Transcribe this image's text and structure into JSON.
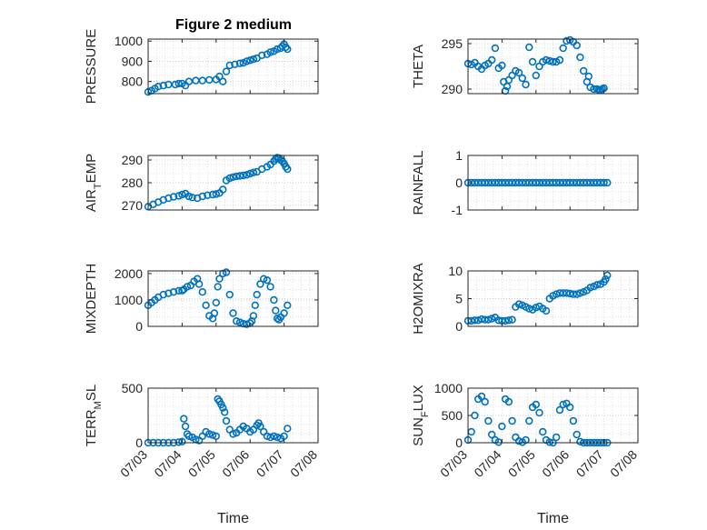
{
  "figure": {
    "title": "Figure 2 medium",
    "colors": {
      "marker": "#0072BD",
      "axis": "#262626",
      "grid": "#d9d9d9",
      "background": "#ffffff"
    }
  },
  "chart_data": [
    {
      "id": "pressure",
      "type": "scatter",
      "marker": "circle-open",
      "title": "Figure 2 medium",
      "ylabel": "PRESSURE",
      "ylim": [
        740,
        1010
      ],
      "yticks": [
        800,
        900,
        1000
      ],
      "yticklabels": [
        "800",
        "900",
        "1000"
      ],
      "xlim": [
        0,
        5
      ],
      "grid": true,
      "x": [
        0.0,
        0.1,
        0.2,
        0.3,
        0.45,
        0.6,
        0.8,
        0.9,
        1.0,
        1.1,
        1.2,
        1.4,
        1.6,
        1.8,
        2.0,
        2.1,
        2.2,
        2.3,
        2.4,
        2.55,
        2.7,
        2.8,
        2.9,
        3.0,
        3.1,
        3.2,
        3.35,
        3.5,
        3.6,
        3.7,
        3.8,
        3.9,
        3.95,
        4.0,
        4.05,
        4.1
      ],
      "y": [
        748,
        755,
        765,
        775,
        780,
        785,
        785,
        790,
        790,
        780,
        800,
        805,
        805,
        808,
        810,
        825,
        800,
        850,
        880,
        885,
        890,
        892,
        900,
        905,
        910,
        915,
        930,
        935,
        945,
        950,
        960,
        965,
        975,
        985,
        970,
        960
      ]
    },
    {
      "id": "theta",
      "type": "scatter",
      "marker": "circle-open",
      "ylabel": "THETA",
      "ylim": [
        289.5,
        295.5
      ],
      "yticks": [
        290,
        295
      ],
      "yticklabels": [
        "290",
        "295"
      ],
      "xlim": [
        0,
        5
      ],
      "grid": true,
      "x": [
        0.0,
        0.1,
        0.2,
        0.3,
        0.4,
        0.5,
        0.6,
        0.7,
        0.8,
        0.9,
        1.0,
        1.05,
        1.1,
        1.15,
        1.2,
        1.3,
        1.4,
        1.5,
        1.6,
        1.7,
        1.8,
        1.9,
        2.0,
        2.1,
        2.2,
        2.3,
        2.4,
        2.5,
        2.6,
        2.7,
        2.8,
        2.9,
        3.0,
        3.1,
        3.2,
        3.3,
        3.4,
        3.5,
        3.55,
        3.6,
        3.7,
        3.8,
        3.85,
        3.9,
        3.95,
        4.0
      ],
      "y": [
        292.8,
        292.7,
        292.9,
        292.5,
        292.2,
        292.6,
        292.8,
        293.2,
        294.5,
        292.3,
        292.6,
        290.8,
        289.8,
        290.3,
        291.0,
        291.5,
        292.0,
        291.8,
        291.2,
        290.5,
        294.6,
        293.0,
        291.5,
        292.5,
        293.0,
        293.2,
        293.1,
        293.0,
        293.0,
        293.2,
        294.5,
        295.3,
        295.4,
        295.2,
        294.8,
        293.5,
        292.0,
        290.8,
        291.4,
        290.2,
        290.0,
        290.0,
        289.9,
        289.9,
        290.0,
        290.1
      ]
    },
    {
      "id": "air_temp",
      "type": "scatter",
      "marker": "circle-open",
      "ylabel": "AIR",
      "ylabel_sub": "T",
      "ylabel_rest": "EMP",
      "ylim": [
        268,
        292
      ],
      "yticks": [
        270,
        280,
        290
      ],
      "yticklabels": [
        "270",
        "280",
        "290"
      ],
      "xlim": [
        0,
        5
      ],
      "grid": true,
      "x": [
        0.0,
        0.15,
        0.3,
        0.45,
        0.6,
        0.75,
        0.9,
        1.0,
        1.1,
        1.2,
        1.3,
        1.45,
        1.6,
        1.75,
        1.9,
        2.0,
        2.1,
        2.2,
        2.3,
        2.4,
        2.5,
        2.6,
        2.7,
        2.8,
        2.9,
        3.0,
        3.1,
        3.2,
        3.35,
        3.5,
        3.6,
        3.7,
        3.75,
        3.8,
        3.85,
        3.9,
        3.95,
        4.0,
        4.05,
        4.1
      ],
      "y": [
        269.5,
        270.5,
        271.5,
        272.5,
        273.2,
        273.8,
        274.2,
        274.8,
        275.2,
        274.0,
        273.5,
        273.2,
        274.0,
        274.5,
        274.8,
        275.0,
        275.5,
        277.0,
        281.0,
        282.0,
        282.5,
        282.8,
        283.0,
        283.2,
        283.5,
        284.0,
        284.5,
        284.8,
        286.0,
        287.0,
        288.0,
        289.5,
        290.5,
        291.0,
        290.8,
        290.0,
        289.5,
        288.5,
        287.0,
        286.0
      ]
    },
    {
      "id": "rainfall",
      "type": "scatter",
      "marker": "circle-open",
      "ylabel": "RAINFALL",
      "ylim": [
        -1,
        1
      ],
      "yticks": [
        -1,
        0,
        1
      ],
      "yticklabels": [
        "-1",
        "0",
        "1"
      ],
      "xlim": [
        0,
        5
      ],
      "grid": true,
      "x": [
        0.0,
        0.1,
        0.2,
        0.3,
        0.4,
        0.5,
        0.6,
        0.7,
        0.8,
        0.9,
        1.0,
        1.1,
        1.2,
        1.3,
        1.4,
        1.5,
        1.6,
        1.7,
        1.8,
        1.9,
        2.0,
        2.1,
        2.2,
        2.3,
        2.4,
        2.5,
        2.6,
        2.7,
        2.8,
        2.9,
        3.0,
        3.1,
        3.2,
        3.3,
        3.4,
        3.5,
        3.6,
        3.7,
        3.8,
        3.9,
        4.0,
        4.1
      ],
      "y": [
        0,
        0,
        0,
        0,
        0,
        0,
        0,
        0,
        0,
        0,
        0,
        0,
        0,
        0,
        0,
        0,
        0,
        0,
        0,
        0,
        0,
        0,
        0,
        0,
        0,
        0,
        0,
        0,
        0,
        0,
        0,
        0,
        0,
        0,
        0,
        0,
        0,
        0,
        0,
        0,
        0,
        0
      ]
    },
    {
      "id": "mixdepth",
      "type": "scatter",
      "marker": "circle-open",
      "ylabel": "MIXDEPTH",
      "ylim": [
        0,
        2100
      ],
      "yticks": [
        0,
        1000,
        2000
      ],
      "yticklabels": [
        "0",
        "1000",
        "2000"
      ],
      "xlim": [
        0,
        5
      ],
      "grid": true,
      "x": [
        0.0,
        0.1,
        0.2,
        0.3,
        0.45,
        0.6,
        0.75,
        0.9,
        1.0,
        1.05,
        1.15,
        1.25,
        1.35,
        1.45,
        1.5,
        1.6,
        1.7,
        1.8,
        1.9,
        1.95,
        2.0,
        2.05,
        2.1,
        2.2,
        2.3,
        2.4,
        2.5,
        2.6,
        2.7,
        2.8,
        2.9,
        3.0,
        3.05,
        3.1,
        3.15,
        3.2,
        3.3,
        3.4,
        3.5,
        3.6,
        3.7,
        3.75,
        3.8,
        3.85,
        3.9,
        4.0,
        4.1
      ],
      "y": [
        800,
        900,
        1000,
        1100,
        1200,
        1250,
        1300,
        1350,
        1350,
        1400,
        1500,
        1550,
        1700,
        1800,
        1600,
        1300,
        800,
        400,
        300,
        500,
        900,
        1500,
        1800,
        2000,
        2050,
        1200,
        500,
        200,
        150,
        100,
        80,
        120,
        200,
        400,
        800,
        1200,
        1600,
        1800,
        1750,
        1500,
        1000,
        600,
        300,
        250,
        350,
        500,
        800
      ]
    },
    {
      "id": "h2omixra",
      "type": "scatter",
      "marker": "circle-open",
      "ylabel": "H2OMIXRA",
      "ylim": [
        0,
        10
      ],
      "yticks": [
        0,
        5,
        10
      ],
      "yticklabels": [
        "0",
        "5",
        "10"
      ],
      "xlim": [
        0,
        5
      ],
      "grid": true,
      "x": [
        0.0,
        0.1,
        0.2,
        0.3,
        0.4,
        0.5,
        0.6,
        0.7,
        0.8,
        0.9,
        1.0,
        1.1,
        1.2,
        1.3,
        1.4,
        1.5,
        1.6,
        1.7,
        1.8,
        1.9,
        2.0,
        2.1,
        2.2,
        2.3,
        2.4,
        2.5,
        2.6,
        2.7,
        2.8,
        2.9,
        3.0,
        3.1,
        3.2,
        3.3,
        3.4,
        3.5,
        3.6,
        3.7,
        3.8,
        3.9,
        4.0,
        4.05,
        4.1
      ],
      "y": [
        1.0,
        1.0,
        1.1,
        1.1,
        1.3,
        1.2,
        1.2,
        1.4,
        1.6,
        1.1,
        1.0,
        1.0,
        1.1,
        1.2,
        3.5,
        4.0,
        3.8,
        3.5,
        3.2,
        3.0,
        3.4,
        3.6,
        3.2,
        2.8,
        5.0,
        5.5,
        5.8,
        6.0,
        6.0,
        6.0,
        5.9,
        5.8,
        5.8,
        6.0,
        6.2,
        6.5,
        7.0,
        7.2,
        7.5,
        7.6,
        8.0,
        8.5,
        9.2
      ]
    },
    {
      "id": "terr_msl",
      "type": "scatter",
      "marker": "circle-open",
      "ylabel": "TERR",
      "ylabel_sub": "M",
      "ylabel_rest": "SL",
      "ylim": [
        0,
        500
      ],
      "yticks": [
        0,
        500
      ],
      "yticklabels": [
        "0",
        "500"
      ],
      "xlim": [
        0,
        5
      ],
      "xticks": [
        0,
        1,
        2,
        3,
        4,
        5
      ],
      "xticklabels": [
        "07/03",
        "07/04",
        "07/05",
        "07/06",
        "07/07",
        "07/08"
      ],
      "xlabel": "Time",
      "grid": true,
      "x": [
        0.0,
        0.15,
        0.3,
        0.45,
        0.6,
        0.75,
        0.9,
        1.0,
        1.05,
        1.1,
        1.15,
        1.2,
        1.3,
        1.4,
        1.5,
        1.6,
        1.7,
        1.8,
        1.9,
        2.0,
        2.05,
        2.1,
        2.15,
        2.2,
        2.25,
        2.3,
        2.4,
        2.5,
        2.6,
        2.7,
        2.8,
        2.9,
        3.0,
        3.1,
        3.2,
        3.25,
        3.3,
        3.4,
        3.5,
        3.6,
        3.7,
        3.8,
        3.9,
        4.0,
        4.1
      ],
      "y": [
        0,
        0,
        0,
        0,
        0,
        0,
        5,
        10,
        220,
        150,
        80,
        60,
        50,
        30,
        20,
        60,
        100,
        80,
        70,
        60,
        400,
        380,
        350,
        320,
        280,
        200,
        120,
        80,
        90,
        120,
        150,
        130,
        100,
        120,
        160,
        180,
        150,
        100,
        60,
        50,
        60,
        50,
        40,
        60,
        130
      ]
    },
    {
      "id": "sun_flux",
      "type": "scatter",
      "marker": "circle-open",
      "ylabel": "SUN",
      "ylabel_sub": "F",
      "ylabel_rest": "LUX",
      "ylim": [
        0,
        1000
      ],
      "yticks": [
        0,
        500,
        1000
      ],
      "yticklabels": [
        "0",
        "500",
        "1000"
      ],
      "xlim": [
        0,
        5
      ],
      "xticks": [
        0,
        1,
        2,
        3,
        4,
        5
      ],
      "xticklabels": [
        "07/03",
        "07/04",
        "07/05",
        "07/06",
        "07/07",
        "07/08"
      ],
      "xlabel": "Time",
      "grid": true,
      "x": [
        0.0,
        0.1,
        0.2,
        0.3,
        0.4,
        0.5,
        0.6,
        0.7,
        0.8,
        0.9,
        1.0,
        1.1,
        1.2,
        1.3,
        1.4,
        1.5,
        1.6,
        1.7,
        1.8,
        1.9,
        2.0,
        2.1,
        2.2,
        2.3,
        2.4,
        2.5,
        2.6,
        2.7,
        2.8,
        2.9,
        3.0,
        3.1,
        3.2,
        3.3,
        3.4,
        3.5,
        3.6,
        3.7,
        3.8,
        3.9,
        4.0,
        4.1
      ],
      "y": [
        50,
        200,
        500,
        800,
        850,
        750,
        400,
        150,
        50,
        10,
        300,
        800,
        750,
        400,
        100,
        30,
        10,
        50,
        400,
        650,
        700,
        550,
        200,
        50,
        10,
        0,
        100,
        600,
        700,
        720,
        650,
        400,
        150,
        20,
        0,
        0,
        0,
        0,
        0,
        0,
        0,
        0
      ]
    }
  ]
}
